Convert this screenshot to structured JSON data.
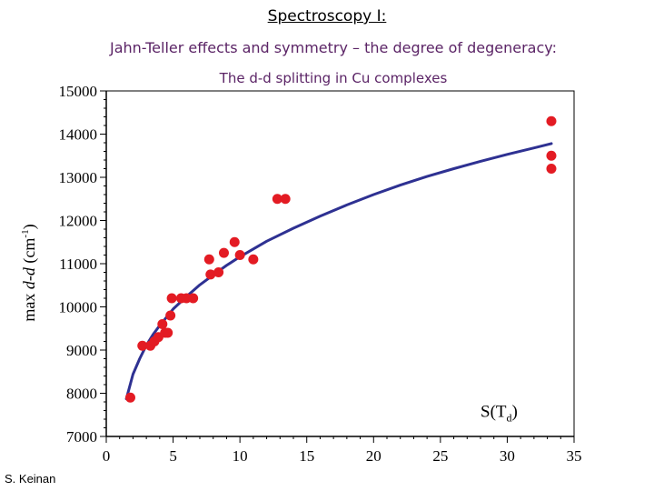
{
  "slide": {
    "title": "Spectroscopy I:",
    "subtitle": "Jahn-Teller effects and symmetry – the degree of degeneracy:",
    "credit": "S. Keinan"
  },
  "colors": {
    "points": "#e31b23",
    "fit": "#2e3192",
    "subtitle": "#5b2466"
  },
  "chart_data": {
    "type": "scatter",
    "title": "The d-d splitting in Cu complexes",
    "xlabel": "",
    "ylabel": "max d-d (cm-1)",
    "ylabel_parts": {
      "prefix": "max ",
      "italic": "d-d",
      "open": " (cm",
      "sup": "-1",
      "close": ")"
    },
    "annotation": {
      "text": "S(T",
      "sub": "d",
      "close": ")",
      "x": 28,
      "y": 7450
    },
    "xlim": [
      0,
      35
    ],
    "ylim": [
      7000,
      15000
    ],
    "xticks": [
      0,
      5,
      10,
      15,
      20,
      25,
      30,
      35
    ],
    "yticks": [
      7000,
      8000,
      9000,
      10000,
      11000,
      12000,
      13000,
      14000,
      15000
    ],
    "grid": false,
    "series": [
      {
        "name": "Cu complexes",
        "kind": "scatter",
        "color": "#e31b23",
        "points": [
          [
            1.8,
            7900
          ],
          [
            2.7,
            9100
          ],
          [
            3.3,
            9100
          ],
          [
            3.6,
            9200
          ],
          [
            3.9,
            9300
          ],
          [
            4.2,
            9600
          ],
          [
            4.4,
            9400
          ],
          [
            4.6,
            9400
          ],
          [
            4.8,
            9800
          ],
          [
            4.9,
            10200
          ],
          [
            5.6,
            10200
          ],
          [
            6.0,
            10200
          ],
          [
            6.5,
            10200
          ],
          [
            7.7,
            11100
          ],
          [
            7.8,
            10750
          ],
          [
            8.4,
            10800
          ],
          [
            8.8,
            11250
          ],
          [
            9.6,
            11500
          ],
          [
            10.0,
            11200
          ],
          [
            11.0,
            11100
          ],
          [
            12.8,
            12500
          ],
          [
            13.4,
            12500
          ],
          [
            33.3,
            14300
          ],
          [
            33.3,
            13500
          ],
          [
            33.3,
            13200
          ]
        ]
      },
      {
        "name": "fit",
        "kind": "line",
        "color": "#2e3192",
        "points": [
          [
            1.5,
            7870
          ],
          [
            2,
            8440
          ],
          [
            2.5,
            8800
          ],
          [
            3,
            9110
          ],
          [
            3.5,
            9360
          ],
          [
            4,
            9570
          ],
          [
            5,
            9950
          ],
          [
            6,
            10240
          ],
          [
            7,
            10510
          ],
          [
            8,
            10740
          ],
          [
            9,
            10960
          ],
          [
            10,
            11160
          ],
          [
            12,
            11520
          ],
          [
            14,
            11820
          ],
          [
            16,
            12100
          ],
          [
            18,
            12360
          ],
          [
            20,
            12600
          ],
          [
            22,
            12820
          ],
          [
            24,
            13020
          ],
          [
            26,
            13200
          ],
          [
            28,
            13370
          ],
          [
            30,
            13530
          ],
          [
            32,
            13680
          ],
          [
            33.3,
            13780
          ]
        ]
      }
    ]
  }
}
